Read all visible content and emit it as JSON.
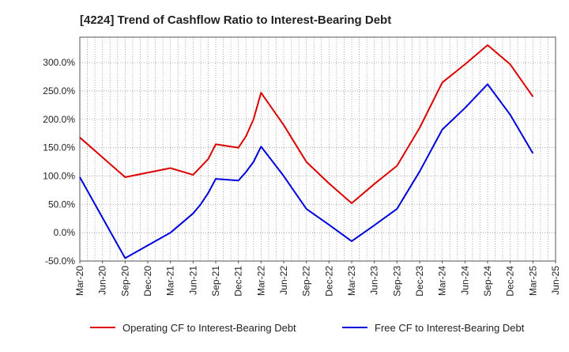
{
  "chart_data": {
    "type": "line",
    "title": "[4224]  Trend of Cashflow Ratio to Interest-Bearing Debt",
    "xlabel": "",
    "ylabel": "",
    "x_ticks": [
      "Mar-20",
      "Jun-20",
      "Sep-20",
      "Dec-20",
      "Mar-21",
      "Jun-21",
      "Sep-21",
      "Dec-21",
      "Mar-22",
      "Jun-22",
      "Sep-22",
      "Dec-22",
      "Mar-23",
      "Jun-23",
      "Sep-23",
      "Dec-23",
      "Mar-24",
      "Jun-24",
      "Sep-24",
      "Dec-24",
      "Mar-25",
      "Jun-25"
    ],
    "y_ticks": [
      "-50.0%",
      "0.0%",
      "50.0%",
      "100.0%",
      "150.0%",
      "200.0%",
      "250.0%",
      "300.0%"
    ],
    "ylim": [
      -50,
      345
    ],
    "grid": true,
    "legend_position": "bottom",
    "series": [
      {
        "name": "Operating CF to Interest-Bearing Debt",
        "color": "#dd0000",
        "points": [
          [
            "Mar-20",
            168
          ],
          [
            "Sep-20",
            98
          ],
          [
            "Mar-21",
            114
          ],
          [
            "Jun-21",
            102
          ],
          [
            "Aug-21",
            130
          ],
          [
            "Sep-21",
            156
          ],
          [
            "Dec-21",
            150
          ],
          [
            "Jan-22",
            170
          ],
          [
            "Feb-22",
            200
          ],
          [
            "Mar-22",
            247
          ],
          [
            "Jun-22",
            190
          ],
          [
            "Sep-22",
            125
          ],
          [
            "Dec-22",
            87
          ],
          [
            "Mar-23",
            52
          ],
          [
            "Jun-23",
            86
          ],
          [
            "Sep-23",
            118
          ],
          [
            "Dec-23",
            185
          ],
          [
            "Mar-24",
            265
          ],
          [
            "Jun-24",
            297
          ],
          [
            "Sep-24",
            331
          ],
          [
            "Dec-24",
            297
          ],
          [
            "Mar-25",
            240
          ]
        ]
      },
      {
        "name": "Free CF to Interest-Bearing Debt",
        "color": "#0000dd",
        "points": [
          [
            "Mar-20",
            98
          ],
          [
            "Sep-20",
            -45
          ],
          [
            "Mar-21",
            0
          ],
          [
            "Jun-21",
            34
          ],
          [
            "Jul-21",
            50
          ],
          [
            "Aug-21",
            70
          ],
          [
            "Sep-21",
            95
          ],
          [
            "Dec-21",
            92
          ],
          [
            "Jan-22",
            107
          ],
          [
            "Feb-22",
            125
          ],
          [
            "Mar-22",
            152
          ],
          [
            "Jun-22",
            100
          ],
          [
            "Sep-22",
            42
          ],
          [
            "Dec-22",
            14
          ],
          [
            "Mar-23",
            -15
          ],
          [
            "Jun-23",
            13
          ],
          [
            "Sep-23",
            42
          ],
          [
            "Dec-23",
            108
          ],
          [
            "Mar-24",
            182
          ],
          [
            "Jun-24",
            220
          ],
          [
            "Sep-24",
            262
          ],
          [
            "Dec-24",
            208
          ],
          [
            "Mar-25",
            140
          ]
        ]
      }
    ]
  }
}
